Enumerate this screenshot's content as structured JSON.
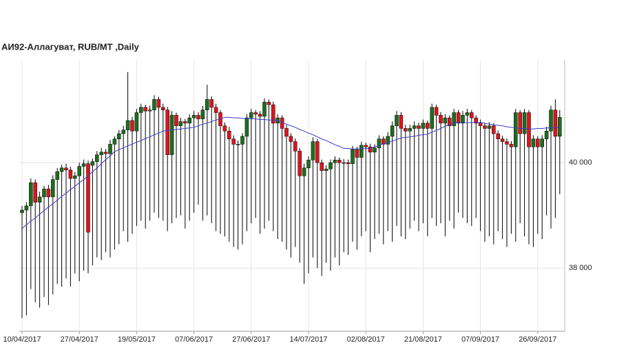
{
  "chart_data": {
    "type": "candlestick",
    "title": "АИ92-Аллагуват,  RUB/MT ,Daily",
    "categories": [
      "10/04/2017",
      null,
      null,
      null,
      null,
      null,
      null,
      null,
      null,
      null,
      null,
      null,
      null,
      "27/04/2017",
      null,
      null,
      null,
      null,
      null,
      null,
      null,
      null,
      null,
      null,
      null,
      null,
      "19/05/2017",
      null,
      null,
      null,
      null,
      null,
      null,
      null,
      null,
      null,
      null,
      null,
      null,
      "07/06/2017",
      null,
      null,
      null,
      null,
      null,
      null,
      null,
      null,
      null,
      null,
      null,
      null,
      "27/06/2017",
      null,
      null,
      null,
      null,
      null,
      null,
      null,
      null,
      null,
      null,
      null,
      null,
      "14/07/2017",
      null,
      null,
      null,
      null,
      null,
      null,
      null,
      null,
      null,
      null,
      null,
      null,
      "02/08/2017",
      null,
      null,
      null,
      null,
      null,
      null,
      null,
      null,
      null,
      null,
      null,
      null,
      "21/08/2017",
      null,
      null,
      null,
      null,
      null,
      null,
      null,
      null,
      null,
      null,
      null,
      null,
      "07/09/2017",
      null,
      null,
      null,
      null,
      null,
      null,
      null,
      null,
      null,
      null,
      null,
      null,
      "26/09/2017",
      null,
      null,
      null,
      null,
      null
    ],
    "open": [
      39050,
      39100,
      39180,
      39620,
      39250,
      39350,
      39500,
      39350,
      39680,
      39830,
      39900,
      39860,
      39700,
      39750,
      39930,
      39980,
      39950,
      40020,
      40150,
      40200,
      40170,
      40350,
      40450,
      40550,
      40620,
      40800,
      40600,
      40950,
      41050,
      40980,
      41000,
      41200,
      41050,
      41000,
      40150,
      40900,
      40700,
      40780,
      40750,
      40850,
      40900,
      40830,
      41000,
      41200,
      41050,
      40950,
      40700,
      40600,
      40450,
      40350,
      40350,
      40500,
      40850,
      40950,
      40920,
      40880,
      41150,
      41100,
      40750,
      40850,
      40650,
      40500,
      40400,
      40220,
      39750,
      39900,
      40050,
      40400,
      40000,
      39850,
      39880,
      40000,
      40050,
      40000,
      40000,
      39980,
      40250,
      40100,
      40330,
      40300,
      40200,
      40280,
      40450,
      40350,
      40500,
      40700,
      40900,
      40650,
      40600,
      40650,
      40700,
      40650,
      40750,
      40650,
      41050,
      40900,
      40750,
      40850,
      40700,
      40950,
      40750,
      40900,
      40950,
      40850,
      40750,
      40700,
      40650,
      40700,
      40550,
      40450,
      40400,
      40350,
      40300,
      40950,
      40550,
      40950,
      40300,
      40450,
      40300,
      40450,
      40600,
      41000,
      40500
    ],
    "high": [
      39180,
      39250,
      39700,
      39680,
      39450,
      39560,
      39580,
      39760,
      39900,
      39960,
      39980,
      39920,
      39820,
      40000,
      40060,
      40040,
      40080,
      40220,
      40280,
      40260,
      40430,
      40500,
      40620,
      40700,
      41720,
      40870,
      41020,
      41120,
      41100,
      41080,
      41280,
      41250,
      41120,
      41060,
      40980,
      40950,
      40850,
      40830,
      40920,
      40980,
      40960,
      41080,
      41480,
      41260,
      41120,
      41000,
      40760,
      40680,
      40520,
      40420,
      40560,
      40920,
      41020,
      41000,
      40980,
      41220,
      41200,
      41160,
      40920,
      40900,
      40720,
      40560,
      40460,
      40280,
      39980,
      40120,
      40480,
      40450,
      40060,
      39950,
      40060,
      40120,
      40100,
      40070,
      40060,
      40320,
      40300,
      40400,
      40380,
      40360,
      40350,
      40520,
      40500,
      40580,
      40780,
      40980,
      40960,
      40720,
      40720,
      40780,
      40760,
      40820,
      40800,
      41120,
      41100,
      40960,
      40920,
      40900,
      41020,
      41000,
      40980,
      41020,
      41000,
      40900,
      40820,
      40760,
      40770,
      40750,
      40610,
      40510,
      40460,
      40410,
      41020,
      41000,
      41020,
      41000,
      40520,
      40500,
      40520,
      40680,
      41080,
      41200,
      41000
    ],
    "low": [
      37050,
      37100,
      37600,
      37350,
      37250,
      37450,
      37300,
      37500,
      37700,
      37650,
      37800,
      37650,
      37900,
      37750,
      37950,
      37900,
      38050,
      38200,
      38150,
      38300,
      38200,
      38350,
      38450,
      38700,
      38500,
      38650,
      38800,
      38900,
      38750,
      38900,
      39050,
      38950,
      38900,
      38700,
      38850,
      38950,
      39000,
      38750,
      38900,
      39050,
      39200,
      38900,
      39000,
      38850,
      38700,
      38650,
      38600,
      38500,
      38400,
      38350,
      38450,
      38700,
      38850,
      38950,
      38650,
      38750,
      38900,
      38700,
      38550,
      38500,
      38350,
      38200,
      38400,
      38100,
      37700,
      37900,
      38200,
      38000,
      37850,
      38100,
      37950,
      38200,
      38050,
      38300,
      38250,
      38500,
      38350,
      38600,
      38700,
      38300,
      38550,
      38650,
      38450,
      38700,
      38500,
      38800,
      38600,
      38550,
      38750,
      38900,
      38700,
      38850,
      38600,
      38950,
      38800,
      38850,
      38600,
      38900,
      38750,
      39050,
      38950,
      38850,
      38800,
      38950,
      38700,
      38500,
      38600,
      38450,
      38700,
      38550,
      38400,
      38650,
      38500,
      38850,
      38600,
      38450,
      38400,
      38650,
      38550,
      39000,
      38750,
      38950,
      39400
    ],
    "close": [
      39100,
      39180,
      39620,
      39250,
      39350,
      39500,
      39350,
      39680,
      39830,
      39900,
      39860,
      39700,
      39750,
      39930,
      39980,
      38680,
      40020,
      40150,
      40200,
      40170,
      40350,
      40450,
      40550,
      40620,
      40800,
      40600,
      40950,
      41050,
      40980,
      41000,
      41200,
      41050,
      41000,
      40150,
      40900,
      40700,
      40780,
      40750,
      40850,
      40900,
      40830,
      41000,
      41200,
      41050,
      40950,
      40700,
      40600,
      40450,
      40350,
      40350,
      40500,
      40850,
      40950,
      40920,
      40880,
      41150,
      41100,
      40750,
      40850,
      40650,
      40500,
      40400,
      40220,
      39750,
      39900,
      40050,
      40400,
      40000,
      39850,
      39880,
      40000,
      40050,
      40000,
      40000,
      39980,
      40250,
      40100,
      40330,
      40300,
      40200,
      40280,
      40450,
      40350,
      40500,
      40700,
      40900,
      40650,
      40600,
      40650,
      40700,
      40650,
      40750,
      40650,
      41050,
      40900,
      40750,
      40850,
      40700,
      40950,
      40750,
      40900,
      40950,
      40850,
      40750,
      40700,
      40650,
      40700,
      40550,
      40450,
      40400,
      40350,
      40300,
      40950,
      40550,
      40950,
      40300,
      40450,
      40300,
      40450,
      40600,
      41000,
      40500,
      40860
    ],
    "line": {
      "color": "#3a3acc",
      "values": [
        38750,
        38820,
        38890,
        38950,
        39020,
        39090,
        39160,
        39220,
        39290,
        39360,
        39420,
        39490,
        39550,
        39620,
        39680,
        39750,
        39830,
        39900,
        39980,
        40060,
        40130,
        40210,
        40250,
        40280,
        40320,
        40350,
        40390,
        40420,
        40460,
        40490,
        40530,
        40560,
        40600,
        40610,
        40620,
        40630,
        40640,
        40650,
        40660,
        40670,
        40700,
        40730,
        40750,
        40780,
        40810,
        40830,
        40860,
        40860,
        40850,
        40850,
        40840,
        40840,
        40830,
        40830,
        40820,
        40820,
        40810,
        40810,
        40800,
        40770,
        40730,
        40700,
        40670,
        40630,
        40600,
        40560,
        40530,
        40490,
        40450,
        40420,
        40380,
        40340,
        40310,
        40270,
        40270,
        40260,
        40260,
        40260,
        40270,
        40270,
        40300,
        40330,
        40360,
        40380,
        40410,
        40440,
        40470,
        40480,
        40490,
        40500,
        40520,
        40530,
        40540,
        40580,
        40610,
        40650,
        40690,
        40720,
        40760,
        40760,
        40760,
        40760,
        40760,
        40760,
        40760,
        40750,
        40730,
        40720,
        40710,
        40700,
        40680,
        40670,
        40660,
        40650,
        40650,
        40640,
        40640,
        40650,
        40650,
        40660,
        40660,
        40670,
        40670
      ]
    },
    "up_color": "#1e6e1e",
    "down_color": "#e0141e",
    "ylim": [
      36800,
      41950
    ],
    "yticks": [
      {
        "value": 38000,
        "label": "38 000"
      },
      {
        "value": 40000,
        "label": "40 000"
      }
    ],
    "grid": true
  }
}
